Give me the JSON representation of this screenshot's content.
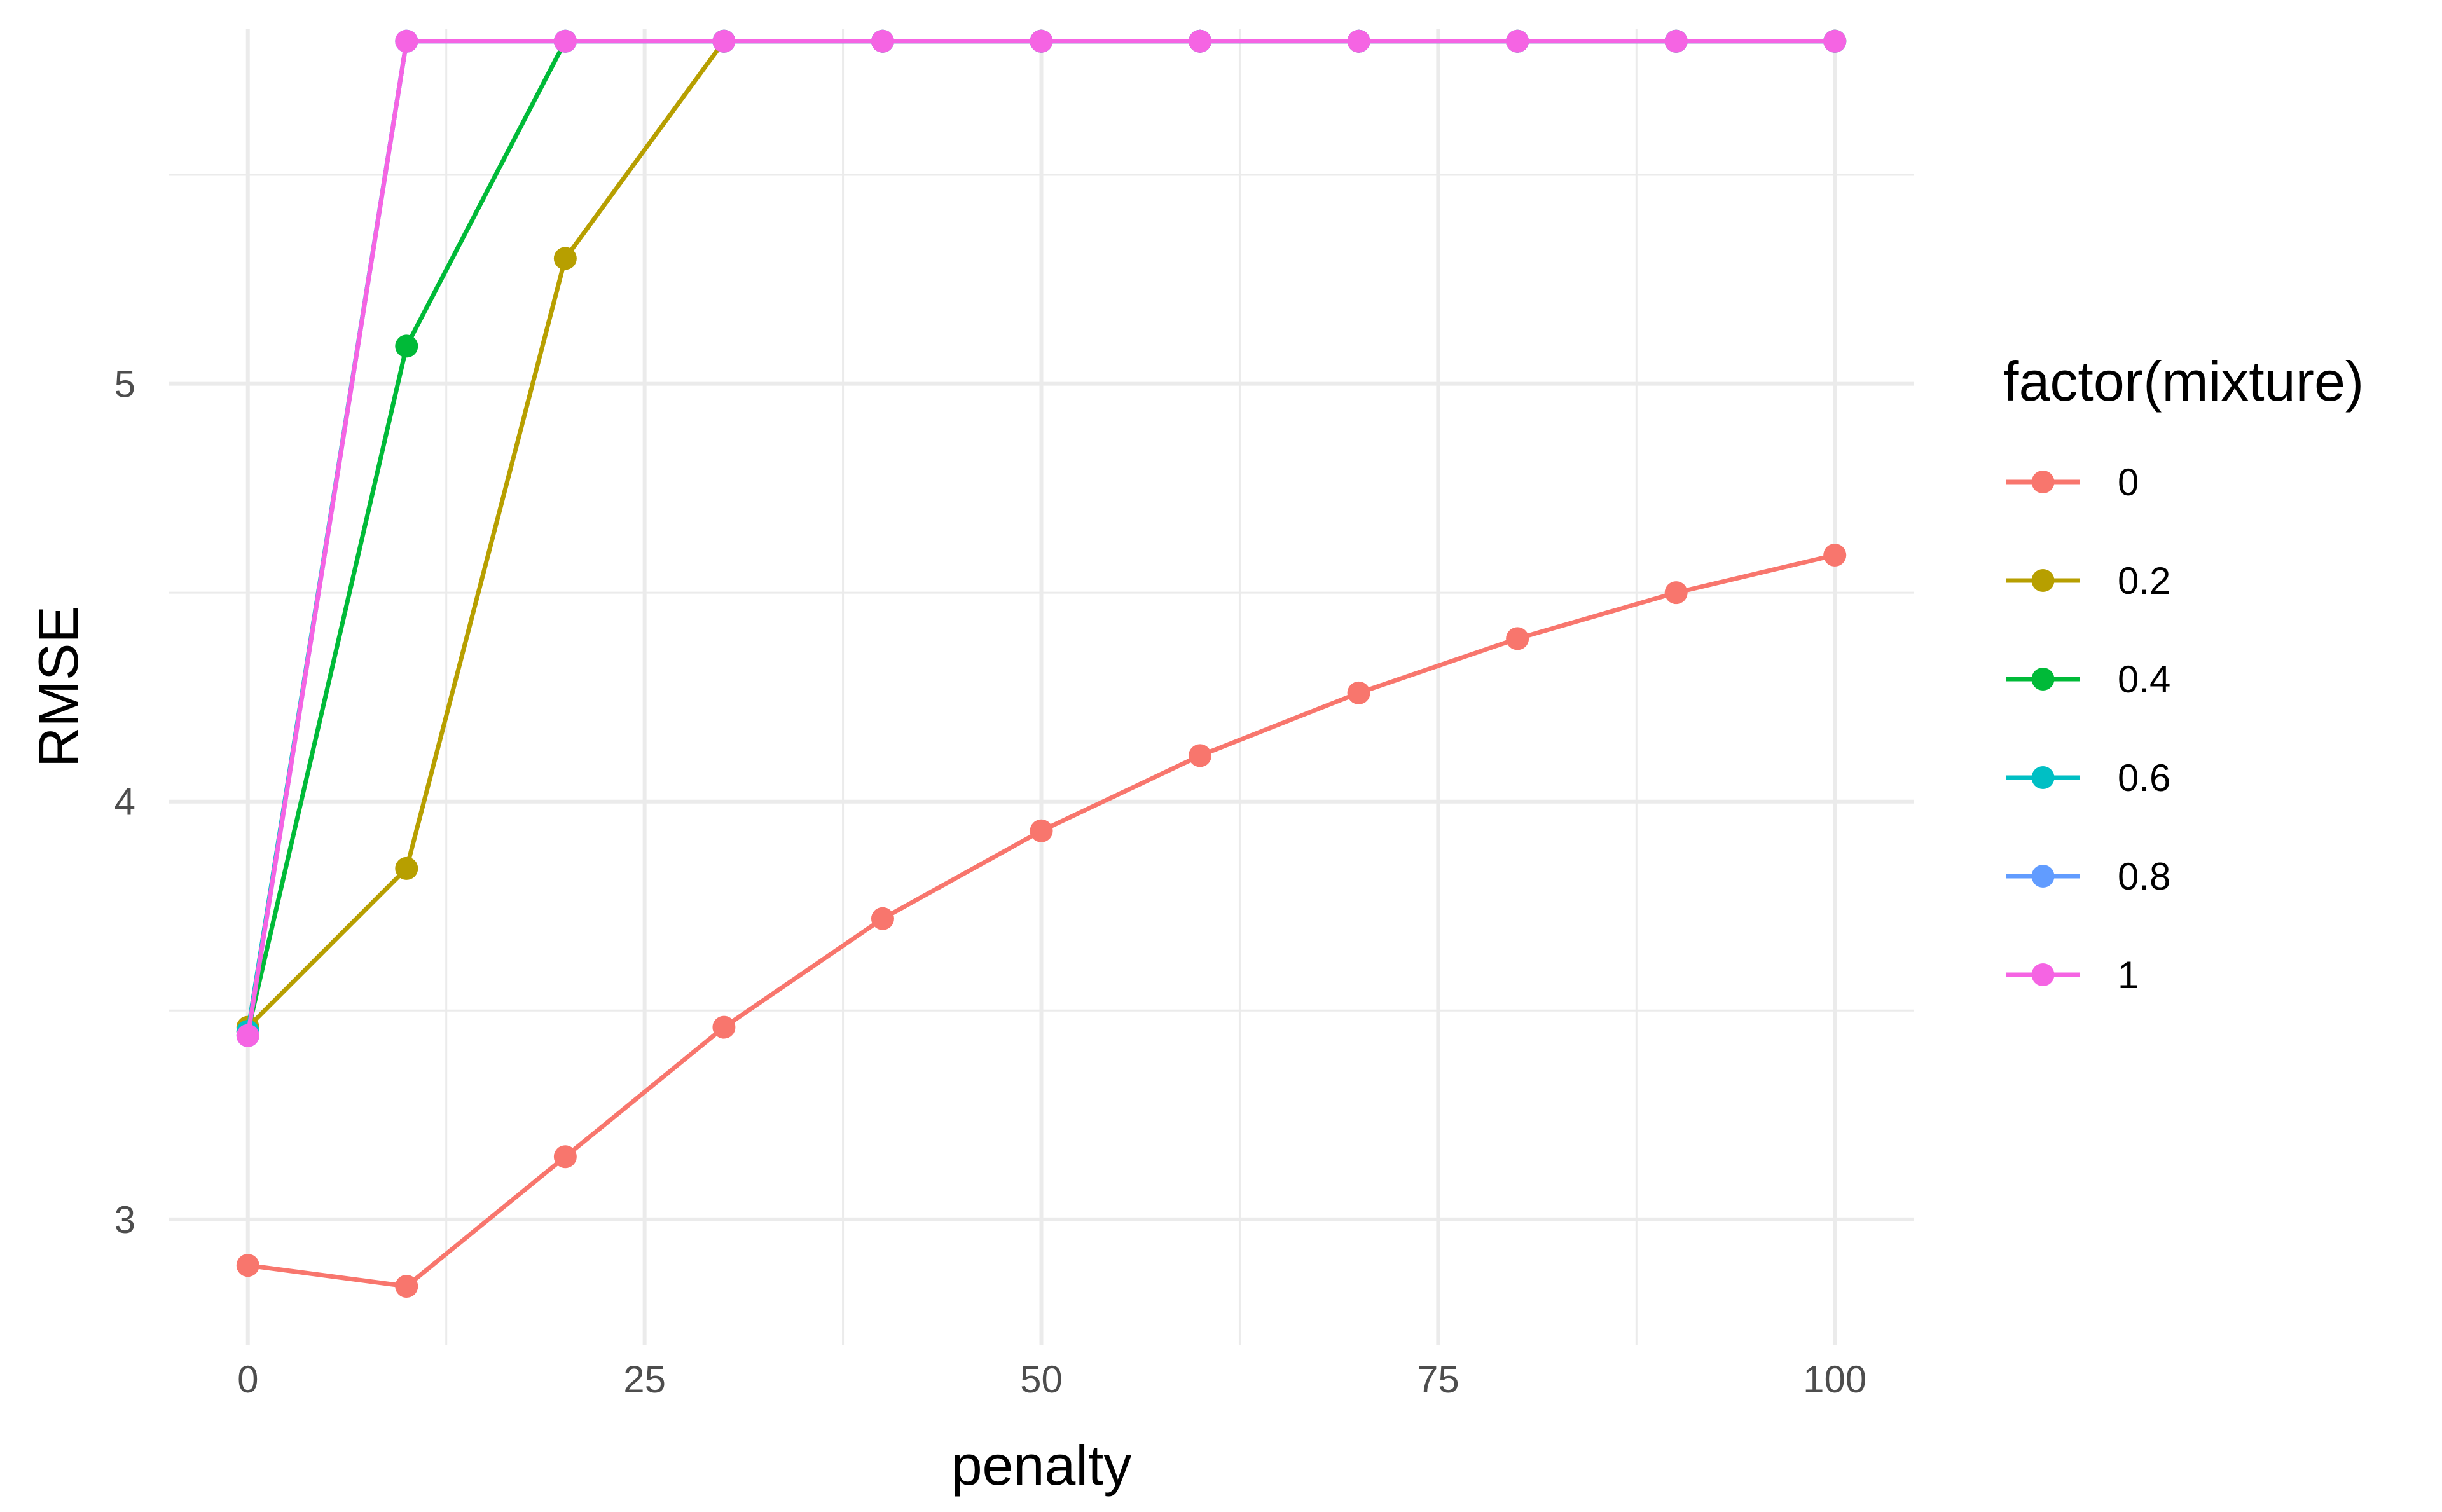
{
  "chart_data": {
    "type": "line",
    "title": "",
    "xlabel": "penalty",
    "ylabel": "RMSE",
    "xlim": [
      -5,
      105
    ],
    "ylim": [
      2.7,
      5.85
    ],
    "x_ticks": [
      0,
      25,
      50,
      75,
      100
    ],
    "x_tick_labels": [
      "0",
      "25",
      "50",
      "75",
      "100"
    ],
    "y_ticks": [
      3,
      4,
      5
    ],
    "y_tick_labels": [
      "3",
      "4",
      "5"
    ],
    "grid": true,
    "legend_position": "right",
    "legend_title": "factor(mixture)",
    "x": [
      0,
      10,
      20,
      30,
      40,
      50,
      60,
      70,
      80,
      90,
      100
    ],
    "series": [
      {
        "name": "0",
        "color": "#F8766D",
        "values": [
          2.89,
          2.84,
          3.15,
          3.46,
          3.72,
          3.93,
          4.11,
          4.26,
          4.39,
          4.5,
          4.59
        ]
      },
      {
        "name": "0.2",
        "color": "#B79F00",
        "values": [
          3.46,
          3.84,
          5.3,
          5.82,
          5.82,
          5.82,
          5.82,
          5.82,
          5.82,
          5.82,
          5.82
        ]
      },
      {
        "name": "0.4",
        "color": "#00BA38",
        "values": [
          3.45,
          5.09,
          5.82,
          5.82,
          5.82,
          5.82,
          5.82,
          5.82,
          5.82,
          5.82,
          5.82
        ]
      },
      {
        "name": "0.6",
        "color": "#00BFC4",
        "values": [
          3.45,
          5.82,
          5.82,
          5.82,
          5.82,
          5.82,
          5.82,
          5.82,
          5.82,
          5.82,
          5.82
        ]
      },
      {
        "name": "0.8",
        "color": "#619CFF",
        "values": [
          3.44,
          5.82,
          5.82,
          5.82,
          5.82,
          5.82,
          5.82,
          5.82,
          5.82,
          5.82,
          5.82
        ]
      },
      {
        "name": "1",
        "color": "#F564E3",
        "values": [
          3.44,
          5.82,
          5.82,
          5.82,
          5.82,
          5.82,
          5.82,
          5.82,
          5.82,
          5.82,
          5.82
        ]
      }
    ]
  }
}
